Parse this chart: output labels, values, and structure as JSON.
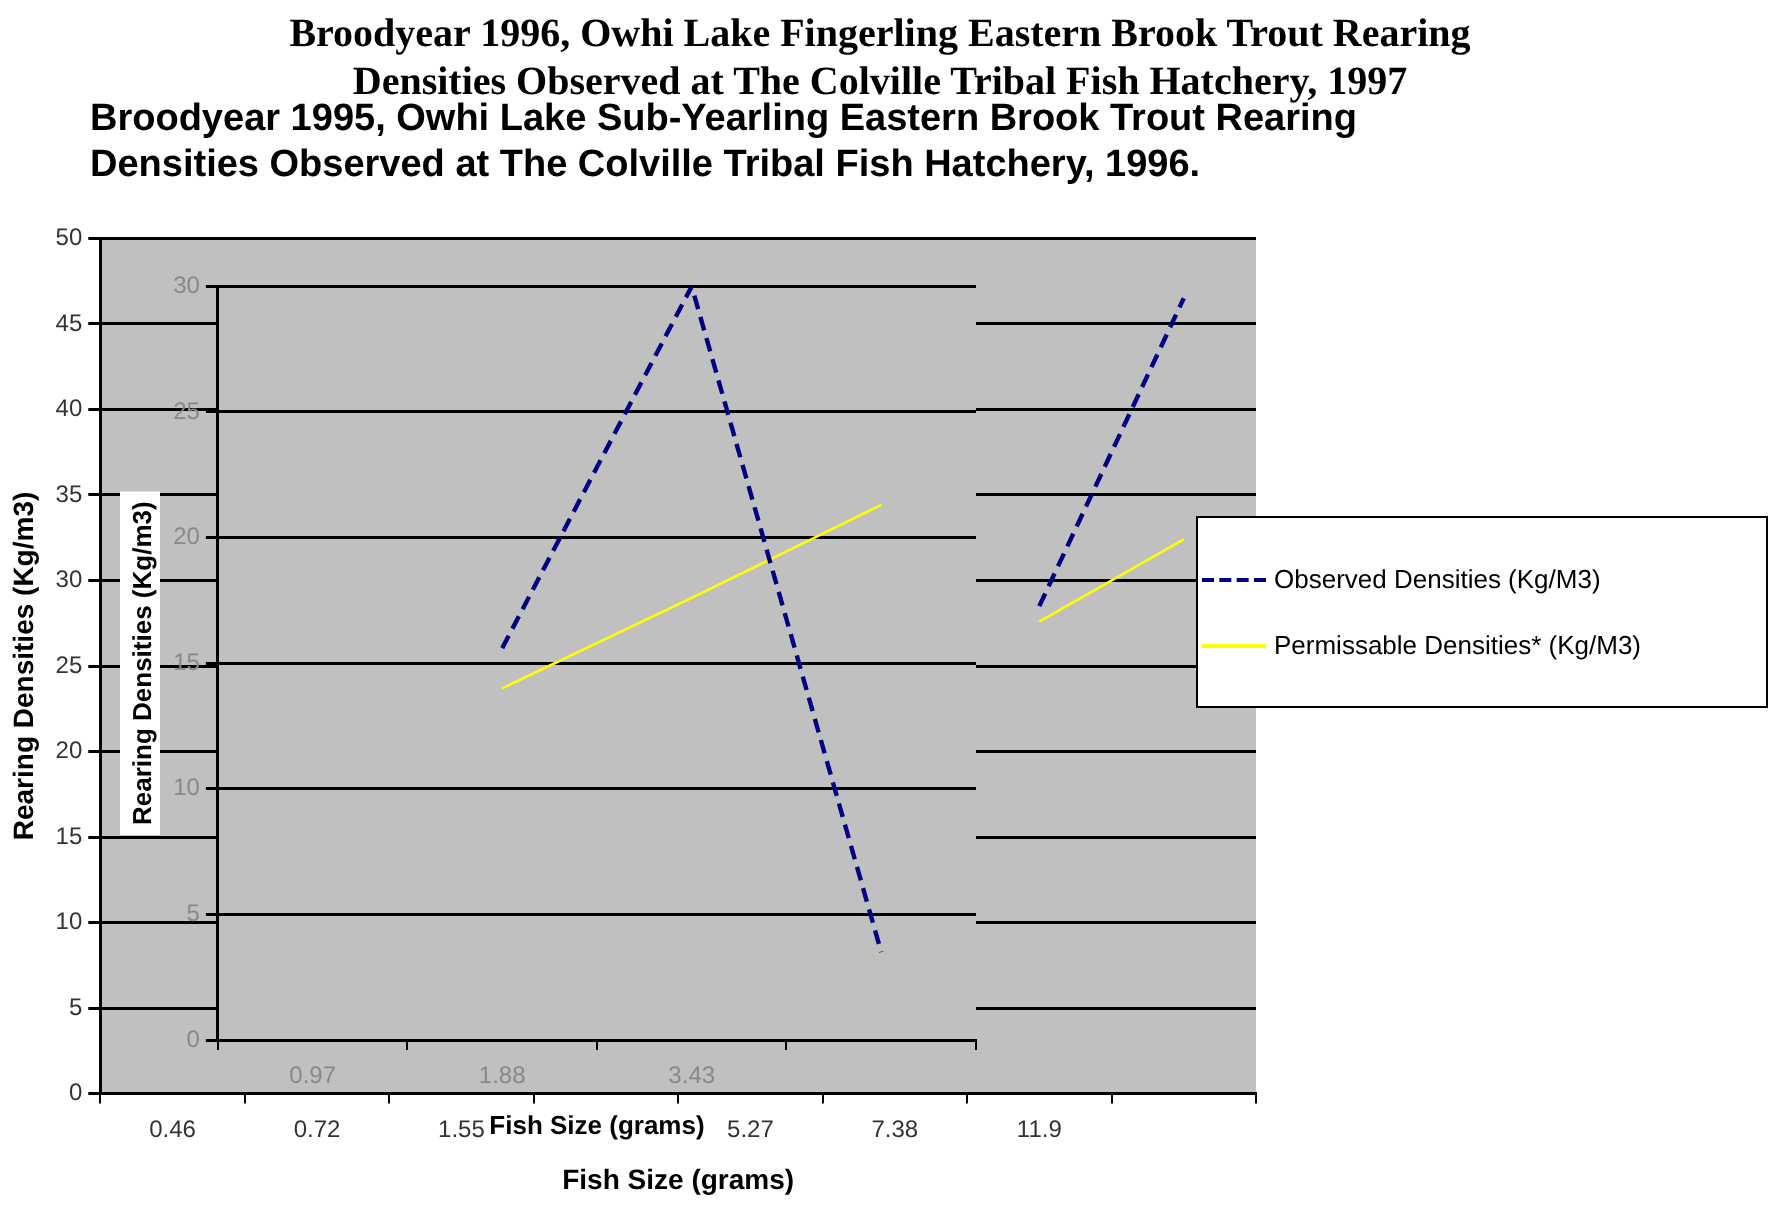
{
  "chart_data": [
    {
      "type": "line",
      "title": "Broodyear 1995, Owhi Lake Sub-Yearling Eastern Brook Trout Rearing Densities Observed at  The Colville Tribal Fish Hatchery, 1996.",
      "xlabel": "Fish Size (grams)",
      "ylabel": "Rearing Densities (Kg/m3)",
      "categories": [
        "0.46",
        "0.72",
        "1.55",
        null,
        "5.27",
        "7.38",
        "11.9",
        null
      ],
      "series": [
        {
          "color": "#000080",
          "line_style": "dashed",
          "values": [
            null,
            null,
            null,
            null,
            null,
            null,
            28.5,
            46.5
          ]
        },
        {
          "color": "#ffff00",
          "values": [
            null,
            null,
            null,
            null,
            null,
            null,
            27.6,
            32.4
          ]
        }
      ],
      "ylim": [
        0,
        50
      ],
      "yticks": [
        0,
        5,
        10,
        15,
        20,
        25,
        30,
        35,
        40,
        45,
        50
      ],
      "grid": "y",
      "marker": "none",
      "legend": false
    },
    {
      "type": "line",
      "title": "Broodyear 1996, Owhi Lake Fingerling Eastern Brook Trout Rearing Densities Observed at The Colville Tribal Fish Hatchery, 1997",
      "xlabel": "Fish Size (grams)",
      "ylabel": "Rearing Densities (Kg/m3)",
      "categories": [
        "0.97",
        "1.88",
        "3.43",
        null
      ],
      "series": [
        {
          "name": "Observed Densities  (Kg/M3)",
          "color": "#000080",
          "line_style": "dashed",
          "values": [
            null,
            15.6,
            30,
            3.5
          ]
        },
        {
          "name": "Permissable Densities* (Kg/M3)",
          "color": "#ffff00",
          "values": [
            null,
            14,
            17.6,
            21.3
          ]
        }
      ],
      "ylim": [
        0,
        30
      ],
      "yticks": [
        0,
        5,
        10,
        15,
        20,
        25,
        30
      ],
      "grid": "y",
      "marker": "none",
      "legend": "right"
    }
  ]
}
